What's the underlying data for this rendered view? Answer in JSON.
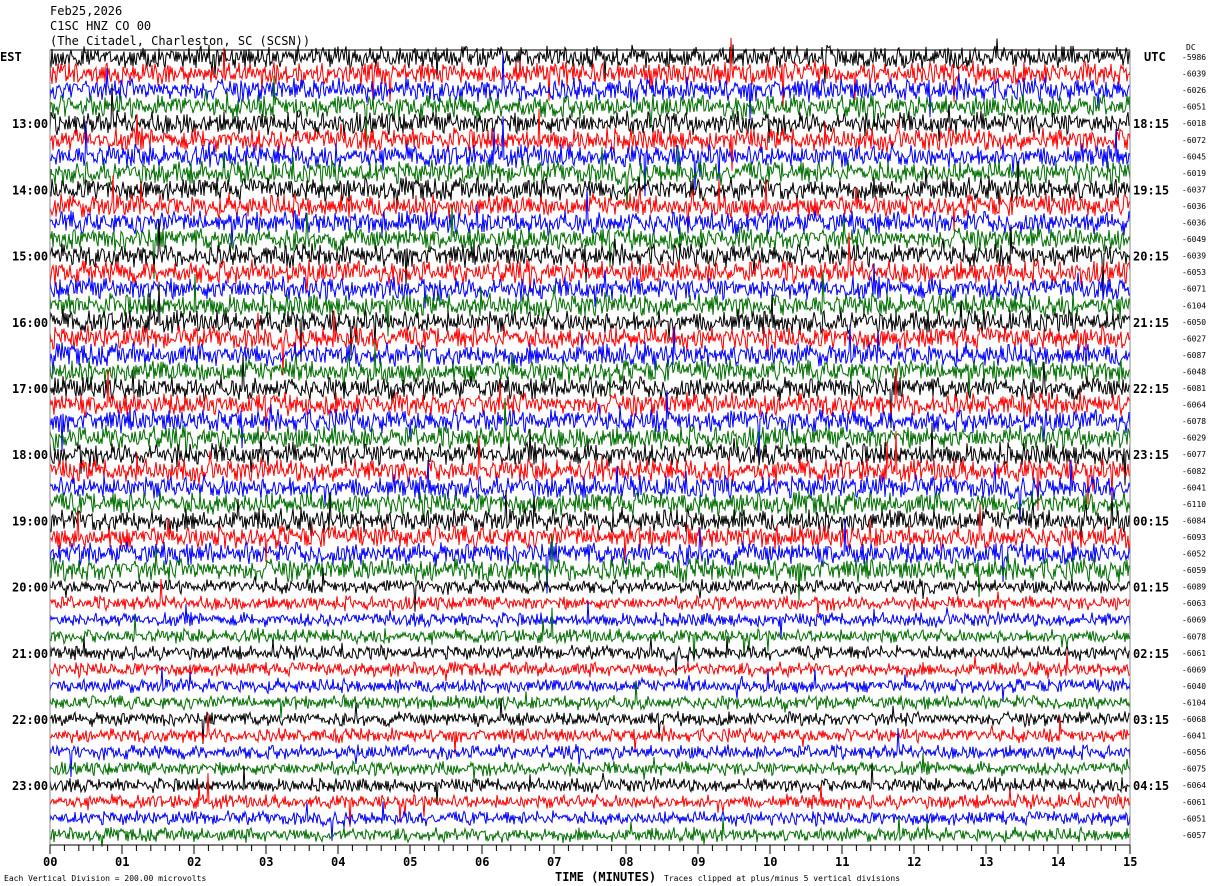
{
  "chart_data": {
    "type": "line",
    "title_lines": [
      "Feb25,2026",
      "C1SC HNZ CO 00",
      "(The Citadel, Charleston, SC (SCSN))"
    ],
    "left_axis_label": "EST",
    "right_axis_label": "UTC",
    "dc_label": "DC",
    "xlabel": "TIME (MINUTES)",
    "xlim": [
      0,
      15
    ],
    "x_ticks": [
      "00",
      "01",
      "02",
      "03",
      "04",
      "05",
      "06",
      "07",
      "08",
      "09",
      "10",
      "11",
      "12",
      "13",
      "14",
      "15"
    ],
    "est_labels": [
      {
        "row": 4,
        "text": "13:00"
      },
      {
        "row": 8,
        "text": "14:00"
      },
      {
        "row": 12,
        "text": "15:00"
      },
      {
        "row": 16,
        "text": "16:00"
      },
      {
        "row": 20,
        "text": "17:00"
      },
      {
        "row": 24,
        "text": "18:00"
      },
      {
        "row": 28,
        "text": "19:00"
      },
      {
        "row": 32,
        "text": "20:00"
      },
      {
        "row": 36,
        "text": "21:00"
      },
      {
        "row": 40,
        "text": "22:00"
      },
      {
        "row": 44,
        "text": "23:00"
      }
    ],
    "utc_labels": [
      {
        "row": 4,
        "text": "18:15"
      },
      {
        "row": 8,
        "text": "19:15"
      },
      {
        "row": 12,
        "text": "20:15"
      },
      {
        "row": 16,
        "text": "21:15"
      },
      {
        "row": 20,
        "text": "22:15"
      },
      {
        "row": 24,
        "text": "23:15"
      },
      {
        "row": 28,
        "text": "00:15"
      },
      {
        "row": 32,
        "text": "01:15"
      },
      {
        "row": 36,
        "text": "02:15"
      },
      {
        "row": 40,
        "text": "03:15"
      },
      {
        "row": 44,
        "text": "04:15"
      }
    ],
    "dc_offsets": [
      "-5986",
      "-6039",
      "-6026",
      "-6051",
      "-6018",
      "-6072",
      "-6045",
      "-6019",
      "-6037",
      "-6036",
      "-6036",
      "-6049",
      "-6039",
      "-6053",
      "-6071",
      "-6104",
      "-6050",
      "-6027",
      "-6087",
      "-6048",
      "-6081",
      "-6064",
      "-6078",
      "-6029",
      "-6077",
      "-6082",
      "-6041",
      "-6110",
      "-6084",
      "-6093",
      "-6052",
      "-6059",
      "-6089",
      "-6063",
      "-6069",
      "-6078",
      "-6061",
      "-6069",
      "-6040",
      "-6104",
      "-6068",
      "-6041",
      "-6056",
      "-6075",
      "-6064",
      "-6061",
      "-6051",
      "-6057"
    ],
    "trace_colors": [
      "#000000",
      "#ff0000",
      "#0000ff",
      "#007000"
    ],
    "scale_note": "Each Vertical Division =  200.00 microvolts",
    "clip_note": "Traces clipped at plus/minus 5 vertical divisions"
  }
}
